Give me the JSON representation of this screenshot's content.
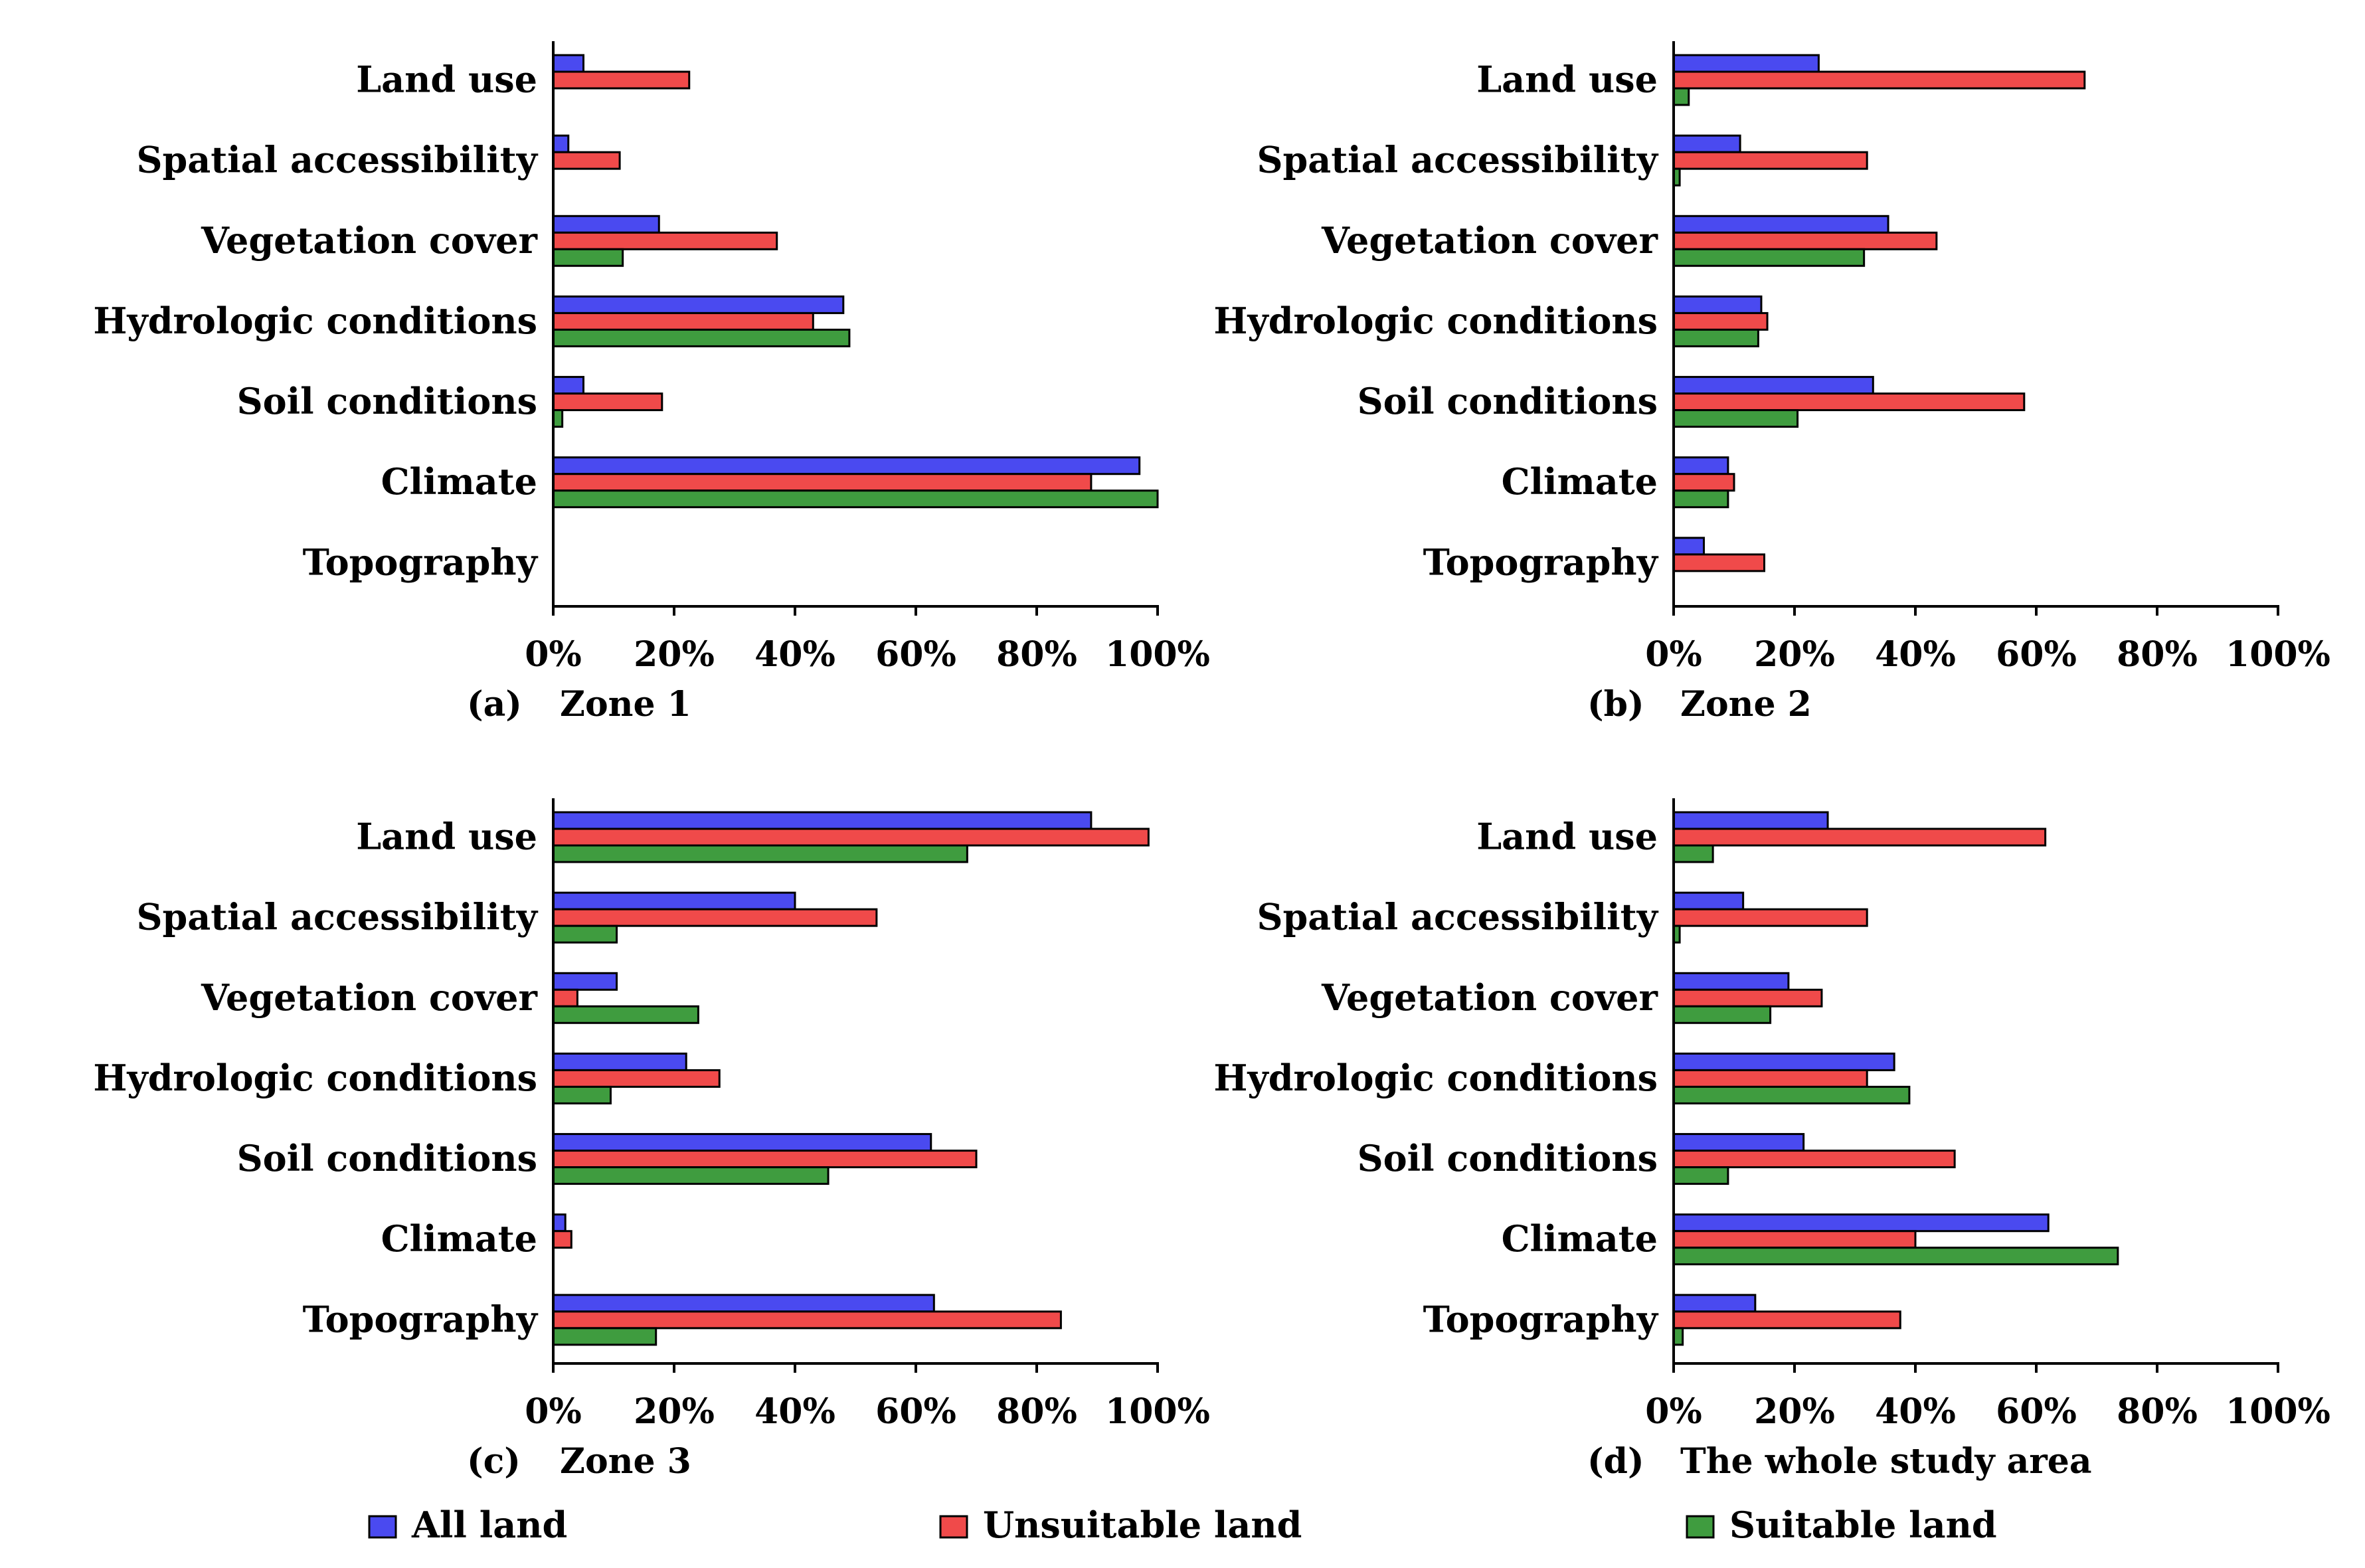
{
  "colors": {
    "all_land": "#4a4af0",
    "unsuitable_land": "#f04a4a",
    "suitable_land": "#3f9c3f"
  },
  "legend": [
    {
      "key": "all_land",
      "label": "All land"
    },
    {
      "key": "unsuitable_land",
      "label": "Unsuitable land"
    },
    {
      "key": "suitable_land",
      "label": "Suitable land"
    }
  ],
  "chart_data": [
    {
      "type": "bar",
      "orientation": "horizontal",
      "panel": "(a)",
      "title": "Zone 1",
      "categories": [
        "Land use",
        "Spatial accessibility",
        "Vegetation cover",
        "Hydrologic conditions",
        "Soil conditions",
        "Climate",
        "Topography"
      ],
      "xlim": [
        0,
        100
      ],
      "xticks": [
        "0%",
        "20%",
        "40%",
        "60%",
        "80%",
        "100%"
      ],
      "series": [
        {
          "name": "All land",
          "values": [
            5,
            2.5,
            17.5,
            48,
            5,
            97,
            0
          ]
        },
        {
          "name": "Unsuitable land",
          "values": [
            22.5,
            11,
            37,
            43,
            18,
            89,
            0
          ]
        },
        {
          "name": "Suitable land",
          "values": [
            0,
            0,
            11.5,
            49,
            1.5,
            100,
            0
          ]
        }
      ]
    },
    {
      "type": "bar",
      "orientation": "horizontal",
      "panel": "(b)",
      "title": "Zone 2",
      "categories": [
        "Land use",
        "Spatial accessibility",
        "Vegetation cover",
        "Hydrologic conditions",
        "Soil conditions",
        "Climate",
        "Topography"
      ],
      "xlim": [
        0,
        100
      ],
      "xticks": [
        "0%",
        "20%",
        "40%",
        "60%",
        "80%",
        "100%"
      ],
      "series": [
        {
          "name": "All land",
          "values": [
            24,
            11,
            35.5,
            14.5,
            33,
            9,
            5
          ]
        },
        {
          "name": "Unsuitable land",
          "values": [
            68,
            32,
            43.5,
            15.5,
            58,
            10,
            15
          ]
        },
        {
          "name": "Suitable land",
          "values": [
            2.5,
            1,
            31.5,
            14,
            20.5,
            9,
            0
          ]
        }
      ]
    },
    {
      "type": "bar",
      "orientation": "horizontal",
      "panel": "(c)",
      "title": "Zone 3",
      "categories": [
        "Land use",
        "Spatial accessibility",
        "Vegetation cover",
        "Hydrologic conditions",
        "Soil conditions",
        "Climate",
        "Topography"
      ],
      "xlim": [
        0,
        100
      ],
      "xticks": [
        "0%",
        "20%",
        "40%",
        "60%",
        "80%",
        "100%"
      ],
      "series": [
        {
          "name": "All land",
          "values": [
            89,
            40,
            10.5,
            22,
            62.5,
            2,
            63
          ]
        },
        {
          "name": "Unsuitable land",
          "values": [
            98.5,
            53.5,
            4,
            27.5,
            70,
            3,
            84
          ]
        },
        {
          "name": "Suitable land",
          "values": [
            68.5,
            10.5,
            24,
            9.5,
            45.5,
            0,
            17
          ]
        }
      ]
    },
    {
      "type": "bar",
      "orientation": "horizontal",
      "panel": "(d)",
      "title": "The whole study area",
      "categories": [
        "Land use",
        "Spatial accessibility",
        "Vegetation cover",
        "Hydrologic conditions",
        "Soil conditions",
        "Climate",
        "Topography"
      ],
      "xlim": [
        0,
        100
      ],
      "xticks": [
        "0%",
        "20%",
        "40%",
        "60%",
        "80%",
        "100%"
      ],
      "series": [
        {
          "name": "All land",
          "values": [
            25.5,
            11.5,
            19,
            36.5,
            21.5,
            62,
            13.5
          ]
        },
        {
          "name": "Unsuitable land",
          "values": [
            61.5,
            32,
            24.5,
            32,
            46.5,
            40,
            37.5
          ]
        },
        {
          "name": "Suitable land",
          "values": [
            6.5,
            1,
            16,
            39,
            9,
            73.5,
            1.5
          ]
        }
      ]
    }
  ]
}
